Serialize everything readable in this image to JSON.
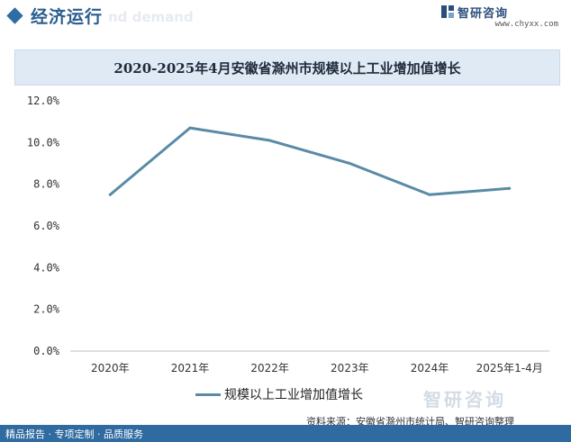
{
  "header": {
    "title": "经济运行",
    "ghost_text": "nd demand"
  },
  "logo": {
    "name": "智研咨询",
    "url": "www.chyxx.com"
  },
  "chart_data": {
    "type": "line",
    "title": "2020-2025年4月安徽省滁州市规模以上工业增加值增长",
    "categories": [
      "2020年",
      "2021年",
      "2022年",
      "2023年",
      "2024年",
      "2025年1-4月"
    ],
    "series": [
      {
        "name": "规模以上工业增加值增长",
        "values": [
          7.5,
          10.7,
          10.1,
          9.0,
          7.5,
          7.8
        ],
        "color": "#5a8aa6"
      }
    ],
    "ylim": [
      0,
      12
    ],
    "y_ticks": [
      "0.0%",
      "2.0%",
      "4.0%",
      "6.0%",
      "8.0%",
      "10.0%",
      "12.0%"
    ],
    "grid": false,
    "legend_position": "bottom"
  },
  "watermark": "智研咨询",
  "source": "资料来源：安徽省滁州市统计局、智研咨询整理",
  "footer": {
    "text": "精品报告 · 专项定制 · 品质服务"
  }
}
